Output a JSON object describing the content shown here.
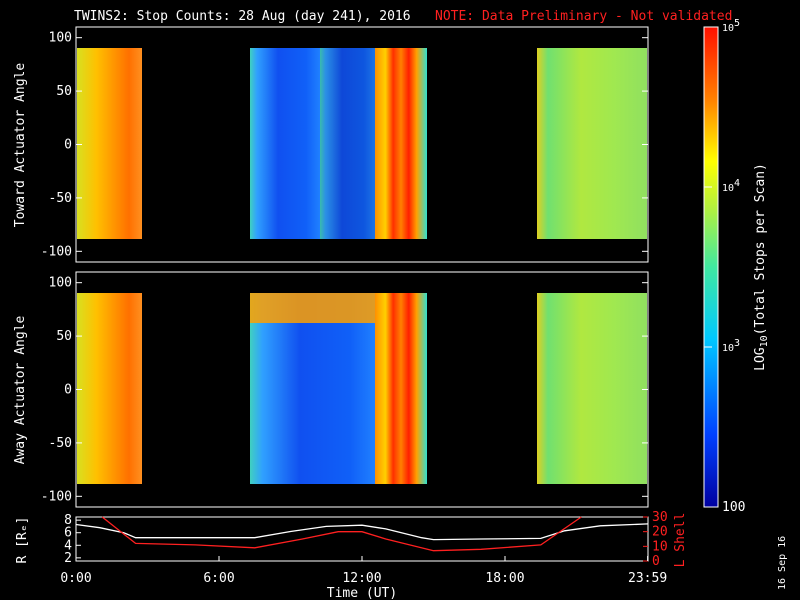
{
  "title": "TWINS2: Stop Counts: 28 Aug (day 241), 2016",
  "note": "NOTE: Data Preliminary - Not validated",
  "date_stamp": "16 Sep 16",
  "colors": {
    "note": "#ff2020",
    "frame": "#ffffff",
    "r_line": "#ffffff",
    "l_shell_line": "#ff2020"
  },
  "chart_data": [
    {
      "type": "heatmap",
      "ylabel": "Toward Actuator Angle",
      "ylim": [
        -110,
        110
      ],
      "yticks": [
        100,
        50,
        0,
        -50,
        -100
      ],
      "ytick_labels": [
        "100",
        "50",
        "0",
        "-50",
        "-100"
      ],
      "x_hours": [
        0,
        24
      ],
      "data_blocks": [
        {
          "start": 0.0,
          "end": 1.9,
          "level": "high (~3x10^4)"
        },
        {
          "start": 7.5,
          "end": 10.5,
          "level": "low (~300)"
        },
        {
          "start": 10.5,
          "end": 12.5,
          "level": "medium (~1x10^3)"
        },
        {
          "start": 12.5,
          "end": 14.8,
          "level": "high (~5x10^4)"
        },
        {
          "start": 19.5,
          "end": 24.0,
          "level": "medium-high (~8x10^3)"
        }
      ]
    },
    {
      "type": "heatmap",
      "ylabel": "Away Actuator Angle",
      "ylim": [
        -110,
        110
      ],
      "yticks": [
        100,
        50,
        0,
        -50,
        -100
      ],
      "ytick_labels": [
        "100",
        "50",
        "0",
        "-50",
        "-100"
      ],
      "x_hours": [
        0,
        24
      ],
      "data_blocks": [
        {
          "start": 0.0,
          "end": 1.9,
          "level": "high (~3x10^4)"
        },
        {
          "start": 7.5,
          "end": 12.5,
          "level": "low-medium (~500), high band near 75 deg"
        },
        {
          "start": 12.5,
          "end": 14.8,
          "level": "high (~5x10^4)"
        },
        {
          "start": 19.5,
          "end": 24.0,
          "level": "medium-high (~8x10^3)"
        }
      ]
    },
    {
      "type": "line",
      "xlabel": "Time (UT)",
      "ylabel_left": "R [Rₑ]",
      "ylabel_right": "L Shell",
      "left_ylim": [
        1.5,
        8.5
      ],
      "left_ticks": [
        "8",
        "6",
        "4",
        "2"
      ],
      "right_ylim": [
        0,
        30
      ],
      "right_ticks": [
        "30",
        "20",
        "10",
        "0"
      ],
      "xticks": [
        "0:00",
        "6:00",
        "12:00",
        "18:00",
        "23:59"
      ],
      "series": [
        {
          "axis": "left",
          "x": [
            0,
            1,
            2,
            2.5,
            5,
            7.5,
            9,
            10.5,
            12,
            13,
            14.5,
            15,
            17,
            19.5,
            20.5,
            22,
            24
          ],
          "y": [
            7.3,
            6.8,
            6.0,
            5.2,
            5.2,
            5.2,
            6.2,
            7.0,
            7.2,
            6.6,
            5.2,
            4.9,
            5.0,
            5.1,
            6.3,
            7.1,
            7.4
          ]
        },
        {
          "axis": "right",
          "x": [
            1.1,
            2.5,
            5,
            7.5,
            9.5,
            11,
            12,
            13,
            15,
            17,
            19.5,
            21.2
          ],
          "y": [
            30,
            12,
            11,
            9,
            15,
            20,
            20,
            15,
            7,
            8,
            11,
            30
          ]
        }
      ]
    }
  ],
  "colorbar": {
    "label": "LOG10(Total Stops per Scan)",
    "label_main": "LOG",
    "label_sub": "10",
    "label_rest": "(Total Stops per Scan)",
    "ticks": [
      {
        "value": 100000,
        "base": "10",
        "exp": "5"
      },
      {
        "value": 10000,
        "base": "10",
        "exp": "4"
      },
      {
        "value": 1000,
        "base": "10",
        "exp": "3"
      },
      {
        "value": 100,
        "label": "100"
      }
    ],
    "range": [
      100,
      100000
    ]
  }
}
